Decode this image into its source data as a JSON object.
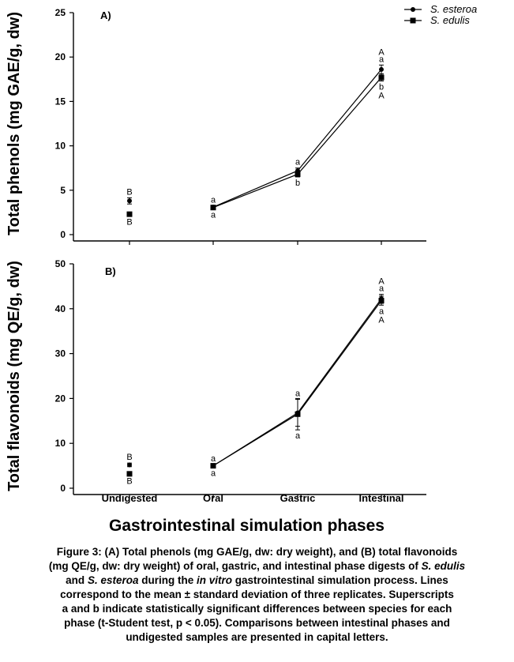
{
  "chart_data": [
    {
      "type": "scatter",
      "panel": "A)",
      "ylabel": "Total phenols (mg GAE/g, dw)",
      "ylim": [
        0,
        25
      ],
      "yticks": [
        0,
        5,
        10,
        15,
        20,
        25
      ],
      "categories": [
        "Undigested",
        "Oral",
        "Gastric",
        "Intestinal"
      ],
      "series": [
        {
          "name": "S. esteroa",
          "marker": "circle",
          "values": [
            3.8,
            3.1,
            7.2,
            18.6
          ],
          "errors": [
            0.35,
            0.15,
            0.3,
            0.5
          ],
          "superscripts": [
            "B",
            "a",
            "a",
            "a"
          ],
          "connected_from": 1
        },
        {
          "name": "S. edulis",
          "marker": "square",
          "values": [
            2.3,
            3.05,
            6.8,
            17.7
          ],
          "errors": [
            0.2,
            0.15,
            0.3,
            0.4
          ],
          "superscripts": [
            "B",
            "a",
            "b",
            "b"
          ],
          "connected_from": 1
        }
      ],
      "capital_superscripts_intestinal": [
        "A",
        "A"
      ],
      "legend_position": "top-right"
    },
    {
      "type": "scatter",
      "panel": "B)",
      "ylabel": "Total flavonoids (mg QE/g, dw)",
      "ylim": [
        0,
        50
      ],
      "yticks": [
        0,
        10,
        20,
        30,
        40,
        50
      ],
      "categories": [
        "Undigested",
        "Oral",
        "Gastric",
        "Intestinal"
      ],
      "series": [
        {
          "name": "S. esteroa",
          "marker": "circle",
          "values": [
            5.2,
            5.0,
            16.8,
            42.2
          ],
          "errors": [
            0.4,
            0.3,
            3.0,
            1.0
          ],
          "superscripts": [
            "B",
            "a",
            "a",
            "a"
          ],
          "connected_from": 1
        },
        {
          "name": "S. edulis",
          "marker": "square",
          "values": [
            3.2,
            5.0,
            16.5,
            41.8
          ],
          "errors": [
            0.3,
            0.3,
            3.5,
            1.0
          ],
          "superscripts": [
            "B",
            "a",
            "a",
            "a"
          ],
          "connected_from": 1
        }
      ],
      "capital_superscripts_intestinal": [
        "A",
        "A"
      ]
    }
  ],
  "xlabel": "Gastrointestinal simulation phases",
  "caption": {
    "line1": "Figure 3: (A) Total phenols (mg GAE/g, dw: dry weight), and (B) total flavonoids",
    "line2_pre": "(mg QE/g, dw: dry weight) of oral, gastric, and intestinal phase digests of ",
    "line2_em": "S. edulis",
    "line3_pre": "and ",
    "line3_em1": "S. esteroa",
    "line3_mid": " during the ",
    "line3_em2": "in vitro",
    "line3_post": " gastrointestinal simulation process. Lines",
    "line4": "correspond to the mean ± standard deviation of three replicates. Superscripts",
    "line5": "a and b indicate statistically significant differences between species for each",
    "line6": "phase (t-Student test, p < 0.05). Comparisons between intestinal phases and",
    "line7": "undigested samples are presented in capital letters."
  }
}
